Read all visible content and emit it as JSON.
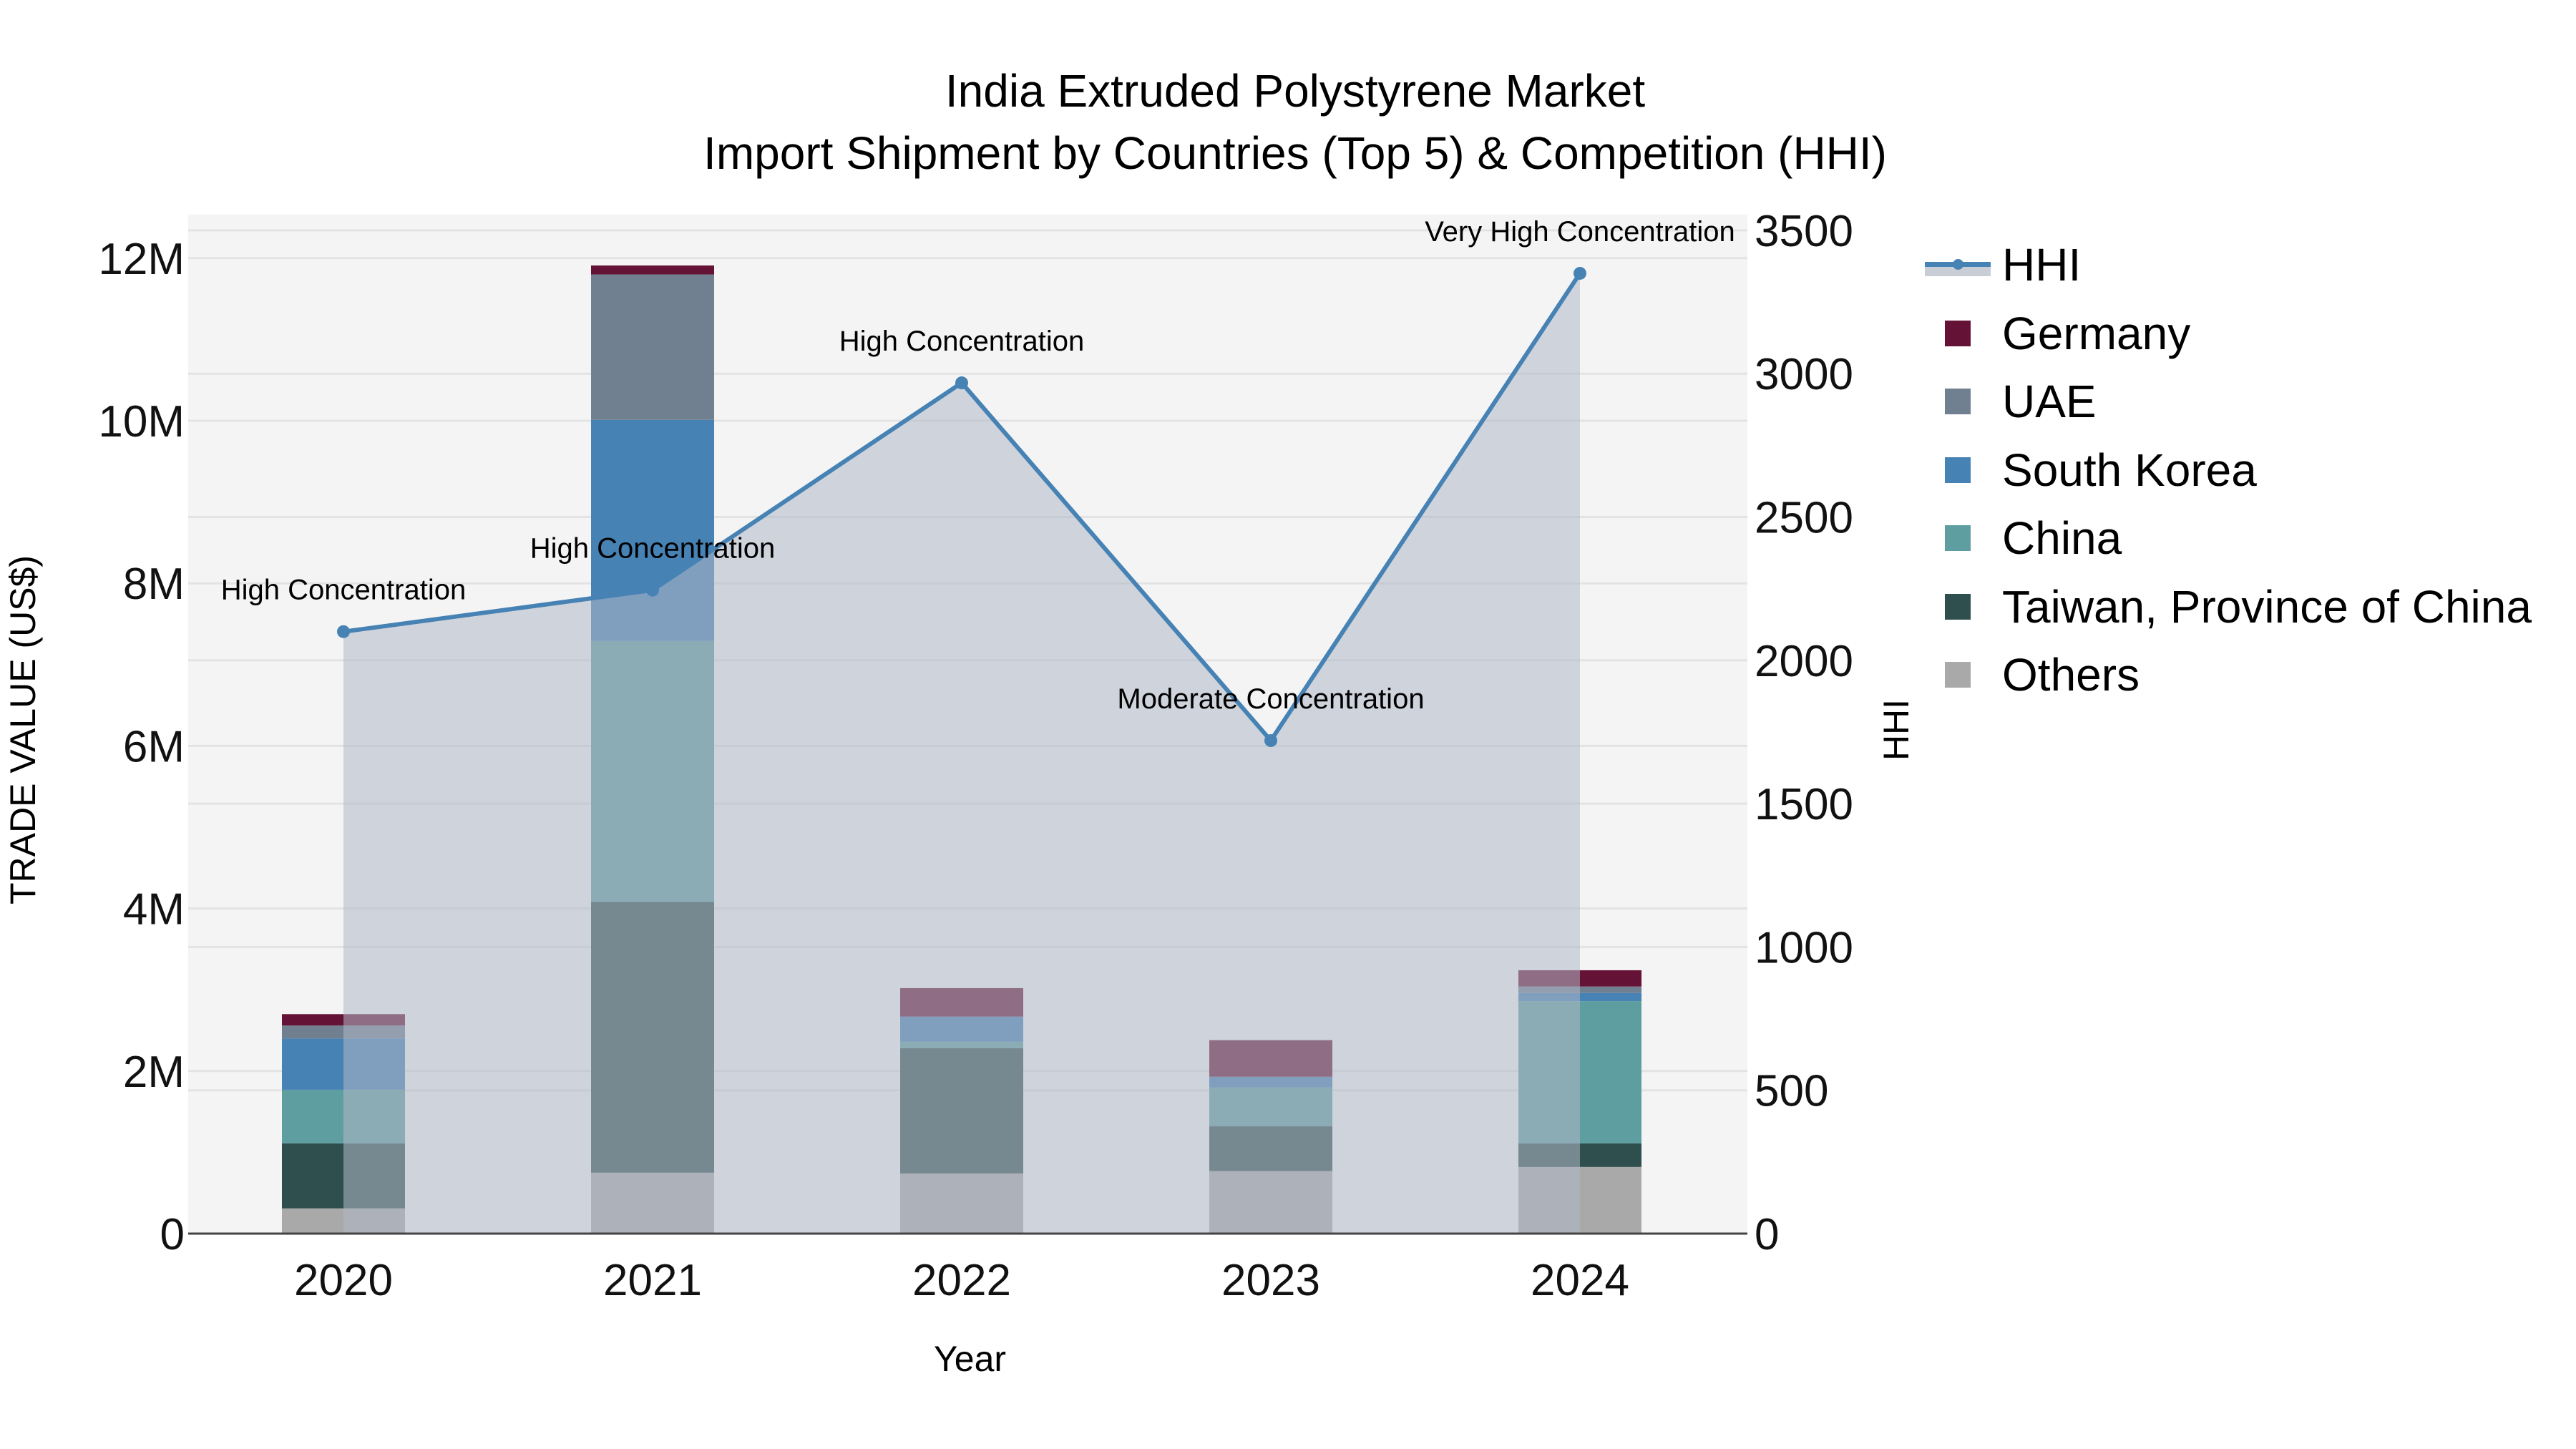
{
  "title": {
    "line1": "India Extruded Polystyrene Market",
    "line2": "Import Shipment by Countries (Top 5) & Competition (HHI)"
  },
  "axes": {
    "x_title": "Year",
    "y_left_title": "TRADE VALUE (US$)",
    "y_right_title": "HHI",
    "y_left_ticks": [
      "0",
      "2M",
      "4M",
      "6M",
      "8M",
      "10M",
      "12M"
    ],
    "y_right_ticks": [
      "0",
      "500",
      "1000",
      "1500",
      "2000",
      "2500",
      "3000",
      "3500"
    ]
  },
  "legend": [
    {
      "label": "HHI",
      "type": "line",
      "color": "#4682B4"
    },
    {
      "label": "Germany",
      "type": "bar",
      "color": "#641235"
    },
    {
      "label": "UAE",
      "type": "bar",
      "color": "#708090"
    },
    {
      "label": "South Korea",
      "type": "bar",
      "color": "#4682B4"
    },
    {
      "label": "China",
      "type": "bar",
      "color": "#5F9EA0"
    },
    {
      "label": "Taiwan, Province of China",
      "type": "bar",
      "color": "#2F4F4F"
    },
    {
      "label": "Others",
      "type": "bar",
      "color": "#A9A9A9"
    }
  ],
  "chart_data": {
    "type": "bar",
    "subtype": "stacked bar + line (secondary axis) with area fill",
    "title": "India Extruded Polystyrene Market — Import Shipment by Countries (Top 5) & Competition (HHI)",
    "xlabel": "Year",
    "ylabel": "TRADE VALUE (US$)",
    "y2label": "HHI",
    "categories": [
      "2020",
      "2021",
      "2022",
      "2023",
      "2024"
    ],
    "ylim": [
      0,
      12500000
    ],
    "y2lim": [
      0,
      3500
    ],
    "grid": true,
    "legend_position": "right",
    "series": [
      {
        "name": "Others",
        "type": "bar",
        "color": "#A9A9A9",
        "values": [
          310000,
          750000,
          740000,
          770000,
          820000
        ]
      },
      {
        "name": "Taiwan, Province of China",
        "type": "bar",
        "color": "#2F4F4F",
        "values": [
          800000,
          3330000,
          1540000,
          550000,
          290000
        ]
      },
      {
        "name": "China",
        "type": "bar",
        "color": "#5F9EA0",
        "values": [
          660000,
          3210000,
          80000,
          480000,
          1750000
        ]
      },
      {
        "name": "South Korea",
        "type": "bar",
        "color": "#4682B4",
        "values": [
          630000,
          2720000,
          310000,
          130000,
          100000
        ]
      },
      {
        "name": "UAE",
        "type": "bar",
        "color": "#708090",
        "values": [
          160000,
          1790000,
          0,
          0,
          80000
        ]
      },
      {
        "name": "Germany",
        "type": "bar",
        "color": "#641235",
        "values": [
          140000,
          110000,
          350000,
          450000,
          200000
        ]
      },
      {
        "name": "HHI",
        "type": "line",
        "axis": "y2",
        "color": "#4682B4",
        "fill": "tozeroy",
        "values": [
          2100,
          2245,
          2968,
          1720,
          3350
        ]
      }
    ],
    "annotations": [
      {
        "x": "2020",
        "text": "High Concentration"
      },
      {
        "x": "2021",
        "text": "High Concentration"
      },
      {
        "x": "2022",
        "text": "High Concentration"
      },
      {
        "x": "2023",
        "text": "Moderate Concentration"
      },
      {
        "x": "2024",
        "text": "Very High Concentration"
      }
    ]
  }
}
